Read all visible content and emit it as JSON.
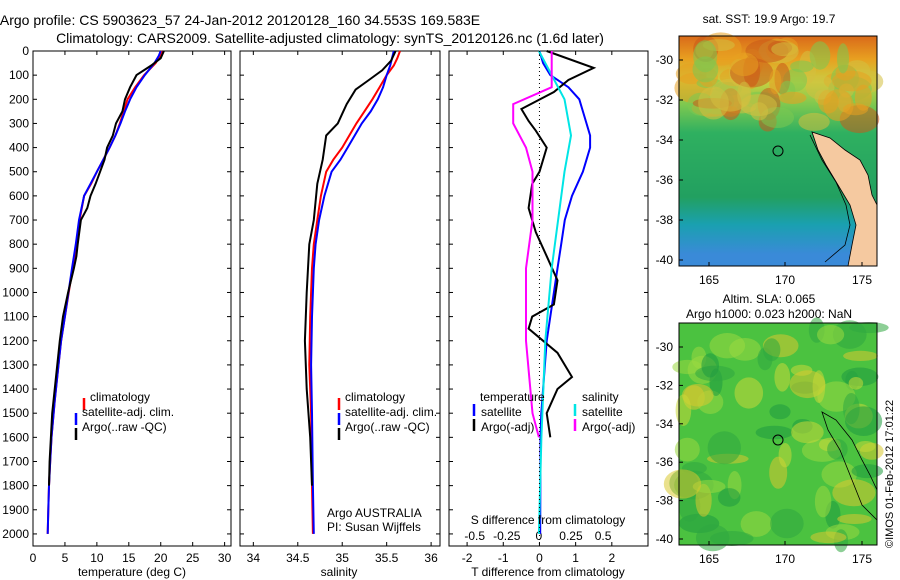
{
  "title_line1": "Argo profile: CS 5903623_57 24-Jan-2012 20120128_160 34.553S 169.583E",
  "title_line2": "Climatology: CARS2009. Satellite-adjusted climatology: synTS_20120126.nc (1.6d later)",
  "colors": {
    "climatology": "#ff0000",
    "satellite": "#0000ff",
    "argo": "#000000",
    "sal_satellite": "#00e5e5",
    "sal_argo": "#ff00ff",
    "coast": "#f5c9a0"
  },
  "y_ticks": [
    0,
    100,
    200,
    300,
    400,
    500,
    600,
    700,
    800,
    900,
    1000,
    1100,
    1200,
    1300,
    1400,
    1500,
    1600,
    1700,
    1800,
    1900,
    2000
  ],
  "chart_data": [
    {
      "id": "temperature",
      "type": "line",
      "xlabel": "temperature (deg C)",
      "xlim": [
        0,
        31
      ],
      "ylim": [
        2050,
        0
      ],
      "x_ticks": [
        0,
        5,
        10,
        15,
        20,
        25,
        30
      ],
      "legend": [
        "climatology",
        "satellite-adj. clim.",
        "Argo(..raw -QC)"
      ],
      "series": [
        {
          "name": "climatology",
          "color": "#ff0000",
          "x": [
            20.2,
            19.9,
            19.2,
            17.4,
            16.0,
            14.8,
            14.2,
            13.6,
            12.9,
            12.0,
            11.0,
            10.0,
            9.1,
            8.0,
            7.3,
            6.8,
            6.2,
            5.0,
            4.4,
            4.0,
            3.4,
            2.9,
            2.7,
            2.5,
            2.4,
            2.3
          ],
          "y": [
            0,
            20,
            50,
            100,
            150,
            200,
            250,
            300,
            350,
            400,
            450,
            500,
            550,
            600,
            700,
            800,
            900,
            1100,
            1200,
            1300,
            1450,
            1600,
            1700,
            1800,
            1900,
            2000
          ]
        },
        {
          "name": "satellite-adj. clim.",
          "color": "#0000ff",
          "x": [
            20.0,
            19.7,
            19.0,
            17.5,
            16.2,
            15.2,
            14.4,
            13.7,
            12.9,
            12.0,
            11.0,
            10.0,
            9.0,
            8.0,
            7.2,
            6.7,
            6.1,
            5.0,
            4.4,
            4.0,
            3.4,
            2.9,
            2.7,
            2.5,
            2.4,
            2.3
          ],
          "y": [
            0,
            20,
            50,
            100,
            150,
            200,
            250,
            300,
            350,
            400,
            450,
            500,
            550,
            600,
            700,
            800,
            900,
            1100,
            1200,
            1300,
            1450,
            1600,
            1700,
            1800,
            1900,
            2000
          ]
        },
        {
          "name": "Argo(..raw -QC)",
          "color": "#000000",
          "x": [
            20.5,
            20.0,
            18.5,
            16.2,
            15.2,
            14.4,
            14.0,
            13.0,
            12.5,
            11.6,
            11.2,
            10.5,
            9.8,
            9.0,
            8.5,
            7.5,
            7.0,
            6.8,
            6.4,
            5.5,
            4.7,
            4.2,
            3.6,
            3.0,
            2.8,
            2.6,
            2.5
          ],
          "y": [
            0,
            30,
            60,
            100,
            150,
            200,
            250,
            300,
            350,
            400,
            450,
            500,
            550,
            600,
            650,
            700,
            800,
            850,
            900,
            1000,
            1100,
            1200,
            1350,
            1500,
            1600,
            1700,
            1800
          ]
        }
      ]
    },
    {
      "id": "salinity",
      "type": "line",
      "xlabel": "salinity",
      "xlim": [
        33.85,
        36.1
      ],
      "ylim": [
        2050,
        0
      ],
      "x_ticks": [
        34,
        34.5,
        35,
        35.5,
        36
      ],
      "x_tick_labels": [
        "34",
        "34.5",
        "35",
        "35.5",
        "36"
      ],
      "legend": [
        "climatology",
        "satellite-adj. clim.",
        "Argo(..raw -QC)"
      ],
      "annotation": [
        "Argo AUSTRALIA",
        "PI: Susan Wijffels"
      ],
      "series": [
        {
          "name": "climatology",
          "color": "#ff0000",
          "x": [
            35.65,
            35.62,
            35.58,
            35.5,
            35.42,
            35.34,
            35.25,
            35.16,
            35.08,
            35.0,
            34.9,
            34.82,
            34.76,
            34.72,
            34.68,
            34.66,
            34.64,
            34.63,
            34.65,
            34.66,
            34.67
          ],
          "y": [
            0,
            30,
            60,
            100,
            150,
            200,
            250,
            300,
            350,
            400,
            450,
            500,
            600,
            700,
            800,
            900,
            1100,
            1300,
            1500,
            1800,
            2000
          ]
        },
        {
          "name": "satellite-adj. clim.",
          "color": "#0000ff",
          "x": [
            35.58,
            35.56,
            35.54,
            35.5,
            35.46,
            35.4,
            35.32,
            35.22,
            35.14,
            35.06,
            34.98,
            34.88,
            34.8,
            34.74,
            34.7,
            34.68,
            34.66,
            34.65,
            34.66,
            34.67,
            34.68
          ],
          "y": [
            0,
            30,
            60,
            100,
            150,
            200,
            250,
            300,
            350,
            400,
            450,
            500,
            600,
            700,
            800,
            900,
            1100,
            1300,
            1500,
            1800,
            2000
          ]
        },
        {
          "name": "Argo(..raw -QC)",
          "color": "#000000",
          "x": [
            35.6,
            35.55,
            35.45,
            35.3,
            35.15,
            35.05,
            35.0,
            34.95,
            34.82,
            34.78,
            34.72,
            34.68,
            34.63,
            34.6,
            34.58,
            34.6,
            34.64,
            34.66
          ],
          "y": [
            0,
            40,
            80,
            120,
            160,
            220,
            260,
            300,
            350,
            450,
            550,
            700,
            800,
            1000,
            1200,
            1400,
            1600,
            1800
          ]
        }
      ]
    },
    {
      "id": "differences",
      "type": "line",
      "xlabel": "T difference from climatology",
      "xlabel_top": "S difference from climatology",
      "xlim": [
        -2.5,
        3.0
      ],
      "ylim": [
        2050,
        0
      ],
      "x_ticks": [
        -2,
        -1,
        0,
        1,
        2
      ],
      "s_ticks": [
        -0.5,
        -0.25,
        0,
        0.25,
        0.5
      ],
      "s_tick_labels": [
        "-0.5",
        "-0.25",
        "0",
        "0.25",
        "0.5"
      ],
      "legend_temperature_title": "temperature",
      "legend_salinity_title": "salinity",
      "legend_temperature": [
        "satellite",
        "Argo(-adj)"
      ],
      "legend_salinity": [
        "satellite",
        "Argo(-adj)"
      ],
      "series": [
        {
          "name": "T satellite",
          "color": "#0000ff",
          "x": [
            0.0,
            0.1,
            0.3,
            0.8,
            1.1,
            1.2,
            1.3,
            1.4,
            1.4,
            1.3,
            1.2,
            0.9,
            0.7,
            0.6,
            0.5,
            0.4,
            0.3,
            0.2,
            0.15,
            0.1,
            0.05,
            0.03,
            0.02
          ],
          "y": [
            0,
            50,
            100,
            150,
            200,
            250,
            300,
            350,
            400,
            450,
            500,
            600,
            700,
            800,
            900,
            1000,
            1100,
            1200,
            1300,
            1400,
            1500,
            1600,
            2000
          ]
        },
        {
          "name": "T Argo(-adj)",
          "color": "#000000",
          "x": [
            0.2,
            1.5,
            0.8,
            0.4,
            -0.5,
            -0.3,
            -0.1,
            0.2,
            0.1,
            0.0,
            -0.2,
            -0.3,
            -0.1,
            0.2,
            0.5,
            0.4,
            -0.2,
            -0.3,
            0.5,
            0.9,
            0.5,
            0.2,
            0.3
          ],
          "y": [
            0,
            70,
            120,
            170,
            240,
            290,
            330,
            400,
            450,
            500,
            550,
            650,
            750,
            850,
            950,
            1050,
            1100,
            1150,
            1250,
            1350,
            1400,
            1500,
            1600
          ]
        },
        {
          "name": "S satellite",
          "color": "#00e5e5",
          "x": [
            0.0,
            0.1,
            0.2,
            0.25,
            0.2,
            0.15,
            0.1,
            0.05,
            0.02,
            0.0
          ],
          "y": [
            0,
            100,
            200,
            350,
            500,
            700,
            900,
            1200,
            1600,
            2000
          ]
        },
        {
          "name": "S Argo(-adj)",
          "color": "#ff00ff",
          "x": [
            0.1,
            0.1,
            -0.2,
            -0.2,
            -0.1,
            -0.05,
            -0.05,
            -0.1,
            -0.1,
            -0.05,
            0.0
          ],
          "y": [
            0,
            150,
            220,
            300,
            400,
            500,
            700,
            900,
            1200,
            1500,
            1600
          ]
        }
      ]
    }
  ],
  "map_sst": {
    "title": "sat. SST: 19.9 Argo: 19.7",
    "x_ticks": [
      "165",
      "170",
      "175"
    ],
    "y_ticks": [
      "-30",
      "-32",
      "-34",
      "-36",
      "-38",
      "-40"
    ]
  },
  "map_sla": {
    "title_line1": "Altim. SLA: 0.065",
    "title_line2": "Argo h1000: 0.023 h2000: NaN",
    "x_ticks": [
      "165",
      "170",
      "175"
    ],
    "y_ticks": [
      "-30",
      "-32",
      "-34",
      "-36",
      "-38",
      "-40"
    ]
  },
  "credit": "©IMOS 01-Feb-2012 17:01:22"
}
